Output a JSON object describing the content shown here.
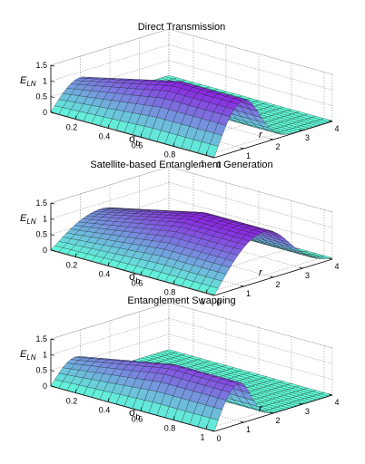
{
  "chart_data": [
    {
      "type": "surface",
      "title": "Direct Transmission",
      "zlabel": "E_LN",
      "xlabel": "σ_b",
      "ylabel": "r",
      "x_ticks": [
        "0.2",
        "0.4",
        "0.6",
        "0.8",
        "1"
      ],
      "y_ticks": [
        "0",
        "1",
        "2",
        "3",
        "4"
      ],
      "z_ticks": [
        "0",
        "0.5",
        "1",
        "1.5"
      ],
      "xlim": [
        0.05,
        1.05
      ],
      "ylim": [
        0,
        4
      ],
      "zlim": [
        0,
        1.5
      ],
      "peak_r": 1.0,
      "peak_value": 1.55,
      "fall_width": 0.75,
      "floor_value": 0.02,
      "grid": true,
      "colormap": [
        "#5fffd9",
        "#8a2be2"
      ]
    },
    {
      "type": "surface",
      "title": "Satellite-based Entanglement Generation",
      "zlabel": "E_LN",
      "xlabel": "σ_b",
      "ylabel": "r",
      "x_ticks": [
        "0.2",
        "0.4",
        "0.6",
        "0.8",
        "1"
      ],
      "y_ticks": [
        "0",
        "1",
        "2",
        "3",
        "4"
      ],
      "z_ticks": [
        "0",
        "0.5",
        "1",
        "1.5"
      ],
      "xlim": [
        0.05,
        1.05
      ],
      "ylim": [
        0,
        4
      ],
      "zlim": [
        0,
        1.5
      ],
      "peak_r": 1.7,
      "peak_value": 1.55,
      "fall_width": 1.2,
      "floor_value": 0.02,
      "grid": true,
      "colormap": [
        "#5fffd9",
        "#8a2be2"
      ]
    },
    {
      "type": "surface",
      "title": "Entanglement Swapping",
      "zlabel": "E_LN",
      "xlabel": "σ_b",
      "ylabel": "r",
      "x_ticks": [
        "0.2",
        "0.4",
        "0.6",
        "0.8",
        "1"
      ],
      "y_ticks": [
        "0",
        "1",
        "2",
        "3",
        "4"
      ],
      "z_ticks": [
        "0",
        "0.5",
        "1",
        "1.5"
      ],
      "xlim": [
        0.05,
        1.05
      ],
      "ylim": [
        0,
        4
      ],
      "zlim": [
        0,
        1.5
      ],
      "peak_r": 0.85,
      "peak_value": 1.3,
      "fall_width": 0.55,
      "floor_value": 0.01,
      "grid": true,
      "colormap": [
        "#5fffd9",
        "#8a2be2"
      ]
    }
  ]
}
